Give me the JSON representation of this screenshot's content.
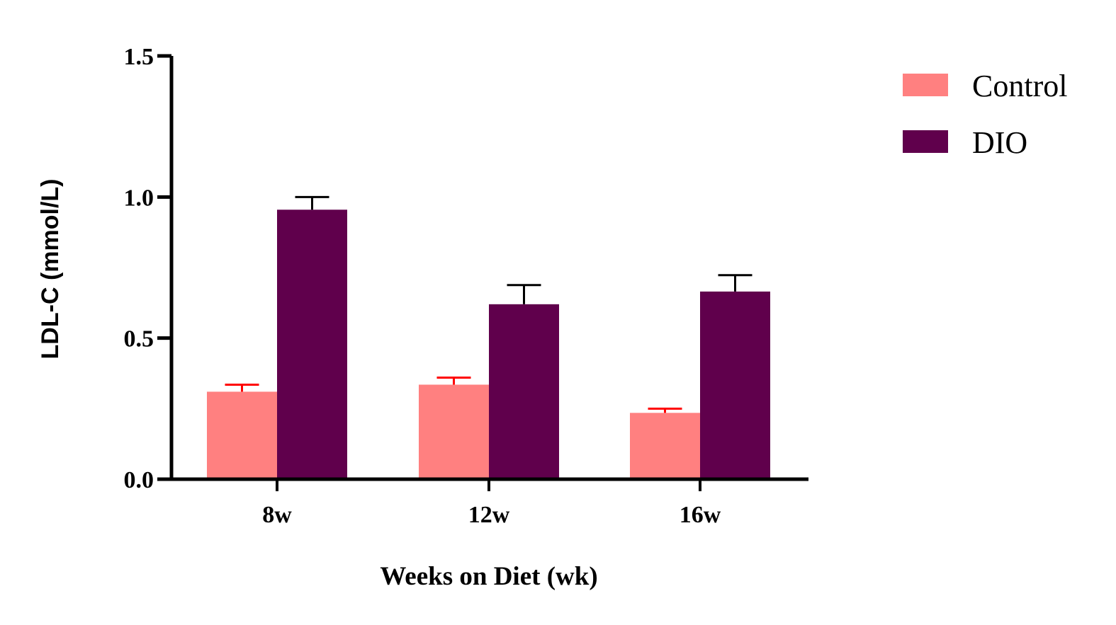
{
  "chart_data": {
    "type": "bar",
    "categories": [
      "8w",
      "12w",
      "16w"
    ],
    "series": [
      {
        "name": "Control",
        "color": "#FF8080",
        "error_color": "#FF0000",
        "values": [
          0.31,
          0.335,
          0.235
        ],
        "errors": [
          0.025,
          0.025,
          0.015
        ]
      },
      {
        "name": "DIO",
        "color": "#60004C",
        "error_color": "#000000",
        "values": [
          0.955,
          0.62,
          0.665
        ],
        "errors": [
          0.045,
          0.068,
          0.058
        ]
      }
    ],
    "xlabel": "Weeks on Diet (wk)",
    "ylabel": "LDL-C (mmol/L)",
    "ylim": [
      0,
      1.5
    ],
    "yticks": [
      "0.0",
      "0.5",
      "1.0",
      "1.5"
    ],
    "ytick_values": [
      0,
      0.5,
      1.0,
      1.5
    ],
    "grid": false,
    "legend_position": "top-right"
  }
}
